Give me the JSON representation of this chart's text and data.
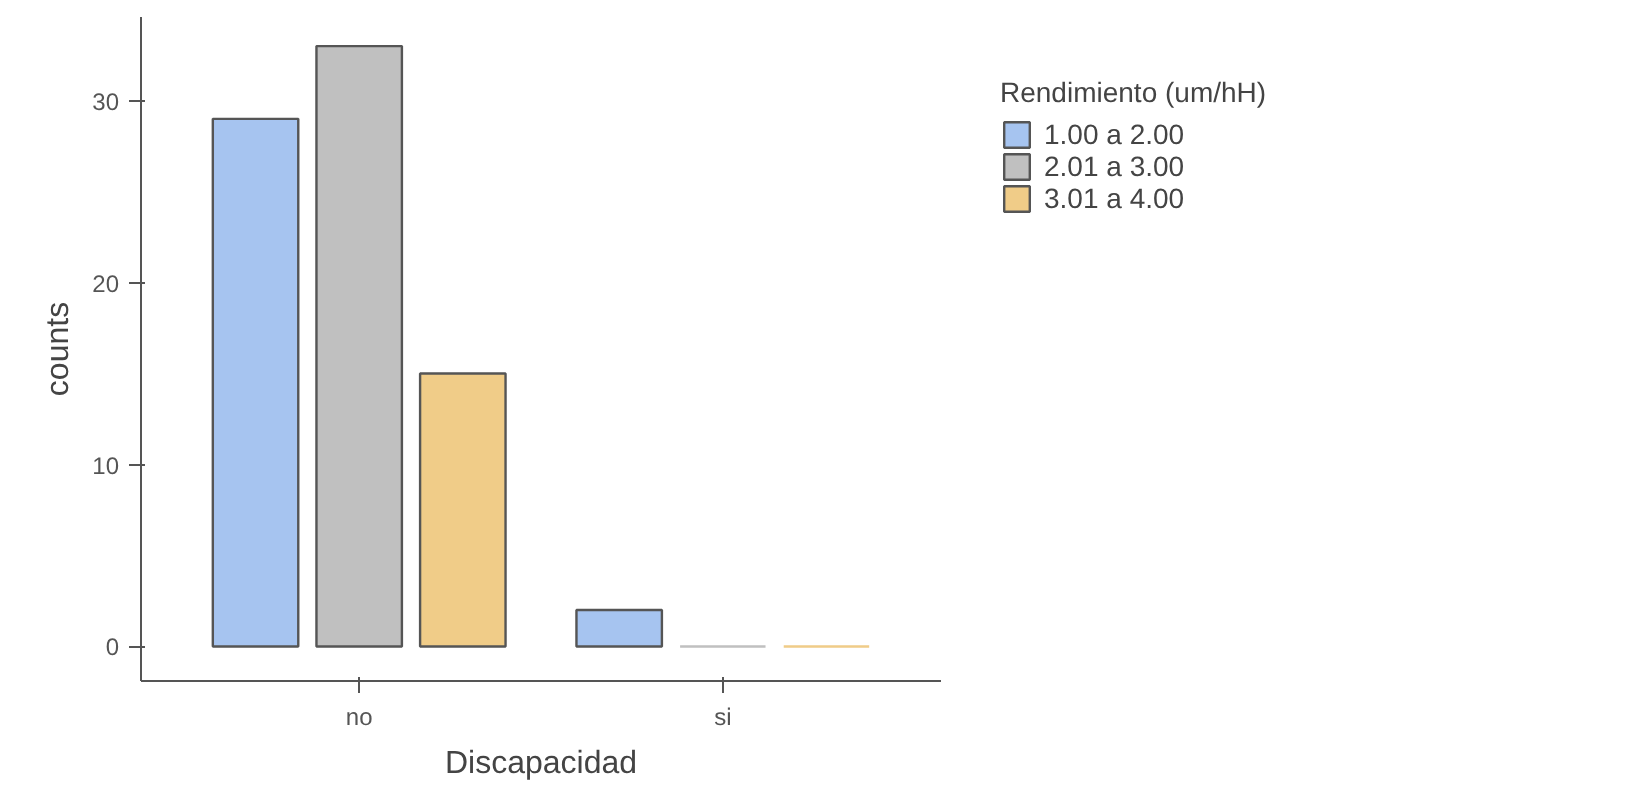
{
  "chart_data": {
    "type": "bar",
    "xlabel": "Discapacidad",
    "ylabel": "counts",
    "legend_title": "Rendimiento (um/hH)",
    "categories": [
      "no",
      "si"
    ],
    "series": [
      {
        "name": "1.00 a 2.00",
        "color": "#a6c4f0",
        "values": [
          29,
          2
        ]
      },
      {
        "name": "2.01 a 3.00",
        "color": "#c0c0c0",
        "values": [
          33,
          0
        ]
      },
      {
        "name": "3.01 a 4.00",
        "color": "#f0cc88",
        "values": [
          15,
          0
        ]
      }
    ],
    "ylim": [
      -1.9,
      34.6
    ],
    "yticks": [
      0,
      10,
      20,
      30
    ],
    "grid": false,
    "legend": "right"
  }
}
